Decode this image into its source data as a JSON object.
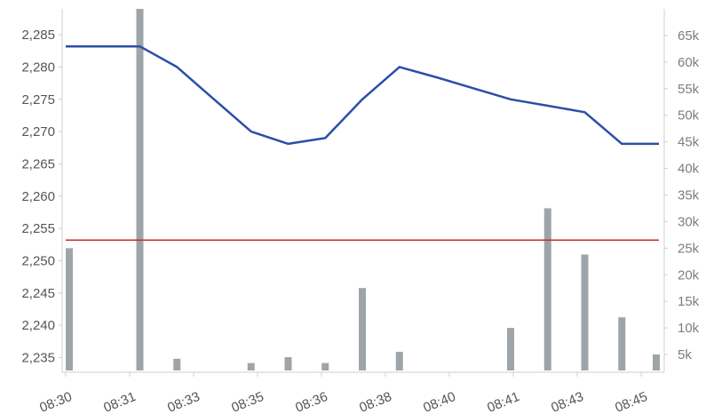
{
  "chart_data": {
    "type": "line",
    "title": "",
    "xlabel": "",
    "ylabel": "",
    "x_tick_labels": [
      "08:30",
      "08:31",
      "08:33",
      "08:35",
      "08:36",
      "08:38",
      "08:40",
      "08:41",
      "08:43",
      "08:45"
    ],
    "price_axis": {
      "side": "left",
      "ylim": [
        2233,
        2289
      ],
      "ticks": [
        2235,
        2240,
        2245,
        2250,
        2255,
        2260,
        2265,
        2270,
        2275,
        2280,
        2285
      ],
      "tick_labels": [
        "2,235",
        "2,240",
        "2,245",
        "2,250",
        "2,255",
        "2,260",
        "2,265",
        "2,270",
        "2,275",
        "2,280",
        "2,285"
      ]
    },
    "volume_axis": {
      "side": "right",
      "ylim": [
        2000,
        70000
      ],
      "ticks": [
        5000,
        10000,
        15000,
        20000,
        25000,
        30000,
        35000,
        40000,
        45000,
        50000,
        55000,
        60000,
        65000
      ],
      "tick_labels": [
        "5k",
        "10k",
        "15k",
        "20k",
        "25k",
        "30k",
        "35k",
        "40k",
        "45k",
        "50k",
        "55k",
        "60k",
        "65k"
      ]
    },
    "x_domain": [
      0,
      16
    ],
    "series": [
      {
        "type": "line",
        "color": "#2b4fa8",
        "x": [
          0,
          1,
          2,
          3,
          4,
          5,
          6,
          7,
          8,
          9,
          10,
          11,
          12,
          13,
          14,
          15,
          16
        ],
        "values": [
          2283.2,
          2283.2,
          2283.2,
          2280.0,
          2275.0,
          2270.0,
          2268.1,
          2269.0,
          2275.0,
          2280.0,
          2278.4,
          2276.7,
          2275.0,
          2274.0,
          2273.0,
          2268.1,
          2268.1
        ]
      },
      {
        "type": "bar",
        "color": "#9ea5a9",
        "x": [
          0,
          2,
          3,
          5,
          6,
          7,
          8,
          9,
          12,
          13,
          14,
          15,
          16
        ],
        "values": [
          25000,
          70000,
          4200,
          3400,
          4500,
          3400,
          17500,
          5500,
          10000,
          32500,
          23800,
          12000,
          5000
        ]
      }
    ],
    "reference_line": {
      "value": 2253.2,
      "color": "#cc2a2a"
    },
    "grid": false
  }
}
